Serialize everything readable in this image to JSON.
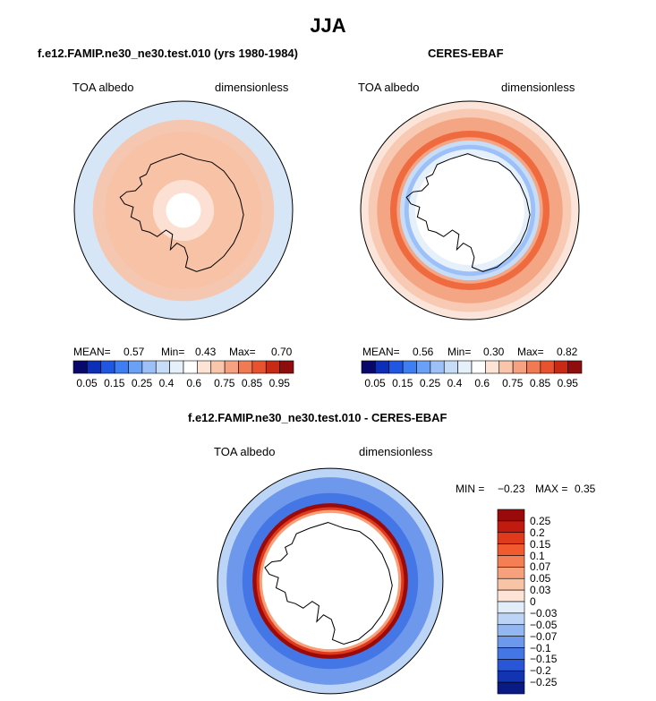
{
  "figure": {
    "title": "JJA"
  },
  "chart_data": [
    {
      "type": "heatmap",
      "title": "f.e12.FAMIP.ne30_ne30.test.010 (yrs 1980-1984)",
      "left_label": "TOA albedo",
      "right_label": "dimensionless",
      "stats": {
        "mean_label": "MEAN=",
        "mean": "0.57",
        "min_label": "Min=",
        "min": "0.43",
        "max_label": "Max=",
        "max": "0.70"
      },
      "levels": [
        "0.05",
        "0.15",
        "0.25",
        "0.4",
        "0.6",
        "0.75",
        "0.85",
        "0.95"
      ],
      "colors": [
        "#08086b",
        "#0d2fb8",
        "#1f57e3",
        "#3d7ff2",
        "#6aa0f5",
        "#9cc0f7",
        "#c6dcf7",
        "#e6f0fb",
        "#ffffff",
        "#fde3d6",
        "#f9c6ac",
        "#f6a180",
        "#f27a53",
        "#e9522f",
        "#c92a15",
        "#8f0d0d"
      ],
      "rings": [
        {
          "r": 1.0,
          "color": "#d6e6f7"
        },
        {
          "r": 0.83,
          "color": "#f5c6b0"
        },
        {
          "r": 0.72,
          "color": "#f7c2a6"
        },
        {
          "r": 0.28,
          "color": "#fbe0d3"
        },
        {
          "r": 0.16,
          "color": "#ffffff"
        }
      ]
    },
    {
      "type": "heatmap",
      "title": "CERES-EBAF",
      "left_label": "TOA albedo",
      "right_label": "dimensionless",
      "stats": {
        "mean_label": "MEAN=",
        "mean": "0.56",
        "min_label": "Min=",
        "min": "0.30",
        "max_label": "Max=",
        "max": "0.82"
      },
      "levels": [
        "0.05",
        "0.15",
        "0.25",
        "0.4",
        "0.6",
        "0.75",
        "0.85",
        "0.95"
      ],
      "colors": [
        "#08086b",
        "#0d2fb8",
        "#1f57e3",
        "#3d7ff2",
        "#6aa0f5",
        "#9cc0f7",
        "#c6dcf7",
        "#e6f0fb",
        "#ffffff",
        "#fde3d6",
        "#f9c6ac",
        "#f6a180",
        "#f27a53",
        "#e9522f",
        "#c92a15",
        "#8f0d0d"
      ],
      "rings": [
        {
          "r": 1.0,
          "color": "#fbe4da"
        },
        {
          "r": 0.93,
          "color": "#f8c9b3"
        },
        {
          "r": 0.85,
          "color": "#f4a584"
        },
        {
          "r": 0.73,
          "color": "#ef6a3e"
        },
        {
          "r": 0.67,
          "color": "#f4a584"
        },
        {
          "r": 0.64,
          "color": "#c6dcf7"
        },
        {
          "r": 0.6,
          "color": "#9cc0f7"
        },
        {
          "r": 0.56,
          "color": "#e6f0fb"
        },
        {
          "r": 0.5,
          "color": "#ffffff"
        }
      ]
    },
    {
      "type": "heatmap",
      "title": "f.e12.FAMIP.ne30_ne30.test.010 - CERES-EBAF",
      "left_label": "TOA albedo",
      "right_label": "dimensionless",
      "stats": {
        "min_label": "MIN =",
        "min": "−0.23",
        "max_label": "MAX =",
        "max": "0.35"
      },
      "levels": [
        "0.25",
        "0.2",
        "0.15",
        "0.1",
        "0.07",
        "0.05",
        "0.03",
        "0",
        "−0.03",
        "−0.05",
        "−0.07",
        "−0.1",
        "−0.15",
        "−0.2",
        "−0.25"
      ],
      "colors": [
        "#9b0a0a",
        "#c31a10",
        "#df3a1c",
        "#f05a2e",
        "#f47f55",
        "#f6a07c",
        "#f9c3a6",
        "#fde4d7",
        "#e2edfa",
        "#bcd4f5",
        "#93b7f0",
        "#6d98ec",
        "#4476e6",
        "#2856d6",
        "#1234b0",
        "#0a1a84"
      ],
      "rings": [
        {
          "r": 1.0,
          "color": "#bcd4f5"
        },
        {
          "r": 0.92,
          "color": "#6d98ec"
        },
        {
          "r": 0.78,
          "color": "#4476e6"
        },
        {
          "r": 0.69,
          "color": "#9b0a0a"
        },
        {
          "r": 0.655,
          "color": "#df3a1c"
        },
        {
          "r": 0.63,
          "color": "#f6a07c"
        },
        {
          "r": 0.605,
          "color": "#ffffff"
        },
        {
          "r": 0.585,
          "color": "#ffffff"
        }
      ]
    }
  ]
}
